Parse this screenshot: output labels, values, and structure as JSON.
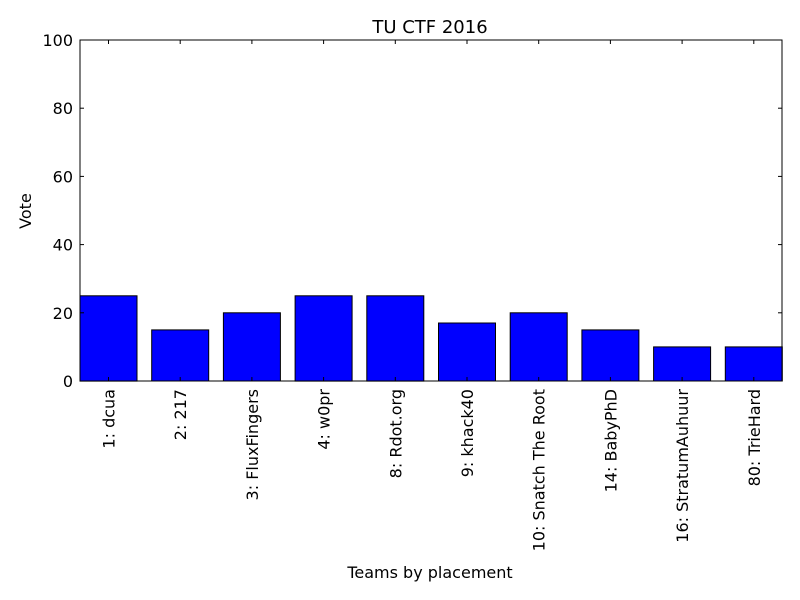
{
  "chart_data": {
    "type": "bar",
    "title": "TU CTF 2016",
    "xlabel": "Teams by placement",
    "ylabel": "Vote",
    "categories": [
      "1: dcua",
      "2: 217",
      "3: FluxFingers",
      "4: w0pr",
      "8: Rdot.org",
      "9: khack40",
      "10: Snatch The Root",
      "14: BabyPhD",
      "16: StratumAuhuur",
      "80: TrieHard"
    ],
    "values": [
      25,
      15,
      20,
      25,
      25,
      17,
      20,
      15,
      10,
      10
    ],
    "ylim": [
      0,
      100
    ],
    "yticks": [
      "0",
      "20",
      "40",
      "60",
      "80",
      "100"
    ],
    "bar_color": "#0000ff",
    "grid": false
  }
}
